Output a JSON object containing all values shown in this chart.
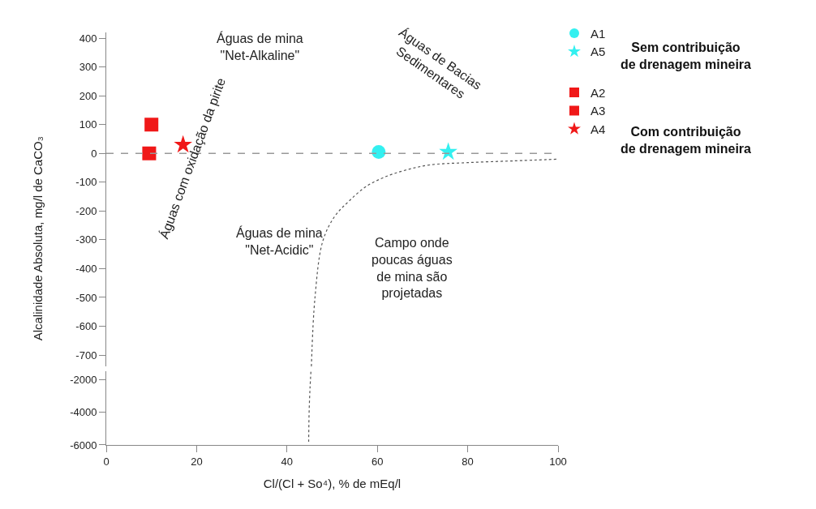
{
  "chart_data": [
    {
      "type": "scatter",
      "ylabel": "Alcalinidade Absoluta, mg/l de CaCO₃",
      "xlim": [
        0,
        100
      ],
      "ylim": [
        -740,
        420
      ],
      "yticks": [
        400,
        300,
        200,
        100,
        0,
        -100,
        -200,
        -300,
        -400,
        -500,
        -600,
        -700
      ],
      "xticks": [
        0,
        20,
        40,
        60,
        80,
        100
      ],
      "tick_labels": "y",
      "legend": "top right",
      "series": [
        {
          "name": "A1",
          "color": "#33f0f0",
          "marker": "circle",
          "x": [
            60.3
          ],
          "values": [
            5
          ]
        },
        {
          "name": "A5",
          "color": "#33f0f0",
          "marker": "star",
          "x": [
            75.7
          ],
          "values": [
            5
          ]
        },
        {
          "name": "A2",
          "color": "#f01818",
          "marker": "square",
          "x": [
            9.5
          ],
          "values": [
            0
          ]
        },
        {
          "name": "A3",
          "color": "#f01818",
          "marker": "square",
          "x": [
            10
          ],
          "values": [
            100
          ]
        },
        {
          "name": "A4",
          "color": "#f01818",
          "marker": "star",
          "x": [
            17
          ],
          "values": [
            30
          ]
        },
        {
          "type": "line",
          "color": "#555555",
          "line_style": "dotted",
          "marker": "none",
          "x": [
            45.4,
            46.2,
            47.9,
            50.5,
            53.7,
            57.5,
            61.8,
            66.5,
            71.6,
            80,
            90,
            100
          ],
          "values": [
            -740,
            -500,
            -306,
            -220,
            -166,
            -115,
            -81,
            -57,
            -40,
            -32,
            -26,
            -20
          ]
        }
      ],
      "ref_lines": [
        {
          "axis": "y",
          "value": 0,
          "color": "#999999",
          "line_style": "dashed"
        }
      ],
      "annotations": [
        "Águas de mina\n\"Net-Alkaline\"",
        "Águas de Bacias\nSedimentares",
        "Águas com oxidação da pirite",
        "Águas de mina\n\"Net-Acidic\"",
        "Campo onde\npoucas águas\nde mina são\nprojetadas",
        "Sem contribuição\nde drenagem mineira",
        "Com contribuição\nde drenagem mineira"
      ]
    },
    {
      "type": "scatter",
      "xlabel": "Cl/(Cl + So⁴), % de mEq/l",
      "xlim": [
        0,
        100
      ],
      "ylim": [
        -6000,
        -1500
      ],
      "yticks": [
        -2000,
        -4000,
        -6000
      ],
      "xticks": [
        0,
        20,
        40,
        60,
        80,
        100
      ],
      "series": [
        {
          "type": "line",
          "color": "#555555",
          "line_style": "dotted",
          "marker": "none",
          "x": [
            45.3,
            45.1,
            44.9,
            44.8
          ],
          "values": [
            -1500,
            -2500,
            -4000,
            -5800
          ]
        }
      ]
    }
  ]
}
